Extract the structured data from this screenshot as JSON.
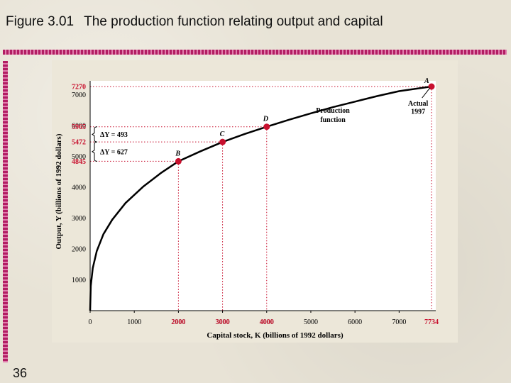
{
  "slide": {
    "figure_number": "Figure 3.01",
    "title": "The production function relating output and capital",
    "page_number": "36"
  },
  "colors": {
    "accent": "#b21d63",
    "highlight_tick": "#c8102e",
    "curve": "#000000",
    "plot_bg": "#ffffff"
  },
  "chart_data": {
    "type": "line",
    "title": "",
    "xlabel": "Capital stock, K (billions of 1992 dollars)",
    "ylabel": "Output, Y (billions of 1992 dollars)",
    "xlim": [
      0,
      7734
    ],
    "ylim": [
      0,
      7270
    ],
    "xticks": [
      0,
      1000,
      2000,
      3000,
      4000,
      5000,
      6000,
      7000
    ],
    "yticks": [
      1000,
      2000,
      3000,
      4000,
      5000,
      6000,
      7000
    ],
    "x_highlight_ticks": [
      2000,
      3000,
      4000,
      7734
    ],
    "y_highlight_ticks": [
      7270,
      5965,
      5472,
      4845
    ],
    "series": [
      {
        "name": "Production function",
        "x": [
          0,
          15,
          60,
          150,
          300,
          500,
          800,
          1200,
          1600,
          2000,
          2500,
          3000,
          3500,
          4000,
          4500,
          5000,
          5500,
          6000,
          6500,
          7000,
          7734
        ],
        "y": [
          0,
          800,
          1380,
          1930,
          2480,
          2950,
          3490,
          4020,
          4460,
          4845,
          5170,
          5472,
          5730,
          5965,
          6190,
          6400,
          6600,
          6780,
          6960,
          7120,
          7270
        ]
      }
    ],
    "points": [
      {
        "label": "A",
        "x": 7734,
        "y": 7270
      },
      {
        "label": "B",
        "x": 2000,
        "y": 4845
      },
      {
        "label": "C",
        "x": 3000,
        "y": 5472
      },
      {
        "label": "D",
        "x": 4000,
        "y": 5965
      }
    ],
    "annotations": {
      "curve_label_line1": "Production",
      "curve_label_line2": "function",
      "actual_line1": "Actual",
      "actual_line2": "1997",
      "delta_y_upper": "ΔY = 493",
      "delta_y_lower": "ΔY = 627"
    }
  }
}
